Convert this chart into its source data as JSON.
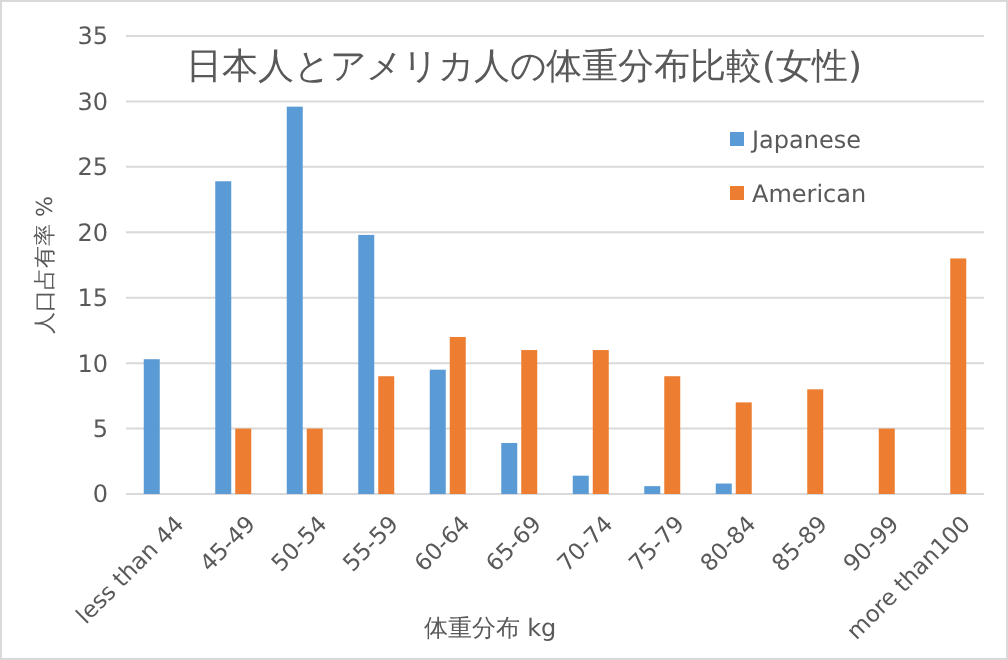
{
  "chart_data": {
    "type": "bar",
    "title": "日本人とアメリカ人の体重分布比較(女性)",
    "xlabel": "体重分布 kg",
    "ylabel": "人口占有率 %",
    "categories": [
      "less than 44",
      "45-49",
      "50-54",
      "55-59",
      "60-64",
      "65-69",
      "70-74",
      "75-79",
      "80-84",
      "85-89",
      "90-99",
      "more than100"
    ],
    "series": [
      {
        "name": "Japanese",
        "color": "#5b9bd5",
        "values": [
          10.3,
          23.9,
          29.6,
          19.8,
          9.5,
          3.9,
          1.4,
          0.6,
          0.8,
          0,
          0,
          0
        ]
      },
      {
        "name": "American",
        "color": "#ed7d31",
        "values": [
          0,
          5,
          5,
          9,
          12,
          11,
          11,
          9,
          7,
          8,
          5,
          18
        ]
      }
    ],
    "ylim": [
      0,
      35
    ],
    "yticks": [
      0,
      5,
      10,
      15,
      20,
      25,
      30,
      35
    ],
    "grid": "y",
    "legend": "top right"
  }
}
